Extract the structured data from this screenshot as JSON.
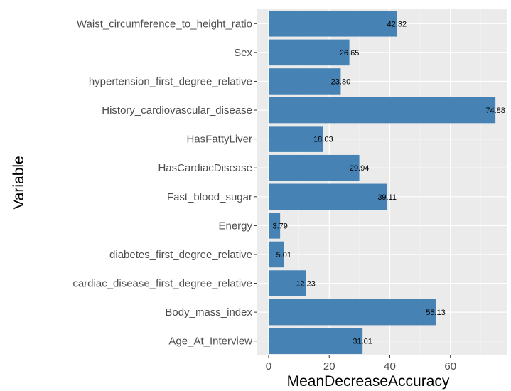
{
  "chart_data": {
    "type": "bar",
    "orientation": "horizontal",
    "categories": [
      "Waist_circumference_to_height_ratio",
      "Sex",
      "hypertension_first_degree_relative",
      "History_cardiovascular_disease",
      "HasFattyLiver",
      "HasCardiacDisease",
      "Fast_blood_sugar",
      "Energy",
      "diabetes_first_degree_relative",
      "cardiac_disease_first_degree_relative",
      "Body_mass_index",
      "Age_At_Interview"
    ],
    "values": [
      42.32,
      26.65,
      23.8,
      74.88,
      18.03,
      29.94,
      39.11,
      3.79,
      5.01,
      12.23,
      55.13,
      31.01
    ],
    "value_labels": [
      "42.32",
      "26.65",
      "23.80",
      "74.88",
      "18.03",
      "29.94",
      "39.11",
      "3.79",
      "5.01",
      "12.23",
      "55.13",
      "31.01"
    ],
    "title": "",
    "xlabel": "MeanDecreaseAccuracy",
    "ylabel": "Variable",
    "xticks": [
      "0",
      "20",
      "40",
      "60"
    ],
    "xlim": [
      -3.75,
      78.6
    ],
    "grid": true,
    "colors": {
      "bar": "#4682b4",
      "panel": "#ebebeb",
      "grid_major": "#ffffff",
      "grid_minor": "#f5f5f5"
    }
  }
}
